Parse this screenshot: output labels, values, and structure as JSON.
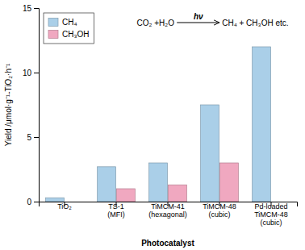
{
  "chart_data": {
    "type": "bar",
    "categories": [
      "TiO₂",
      "TS-1\n(MFI)",
      "TiMCM-41\n(hexagonal)",
      "TiMCM-48\n(cubic)",
      "Pd-loaded\nTiMCM-48\n(cubic)"
    ],
    "series": [
      {
        "name": "CH₄",
        "color": "#aacfe8",
        "values": [
          0.3,
          2.7,
          3.0,
          7.5,
          12.0
        ]
      },
      {
        "name": "CH₃OH",
        "color": "#f0a8c0",
        "values": [
          0.0,
          1.0,
          1.3,
          3.0,
          0.0
        ]
      }
    ],
    "xlabel": "Photocatalyst",
    "ylabel": "Yield /μmol·g⁻¹-TiO₂·h⁻¹",
    "ylim": [
      0,
      15
    ],
    "yticks": [
      0,
      5,
      10,
      15
    ],
    "legend": "upper left",
    "annotations": [
      "CO₂ +H₂O",
      "hν",
      "CH₄ + CH₃OH etc."
    ]
  }
}
